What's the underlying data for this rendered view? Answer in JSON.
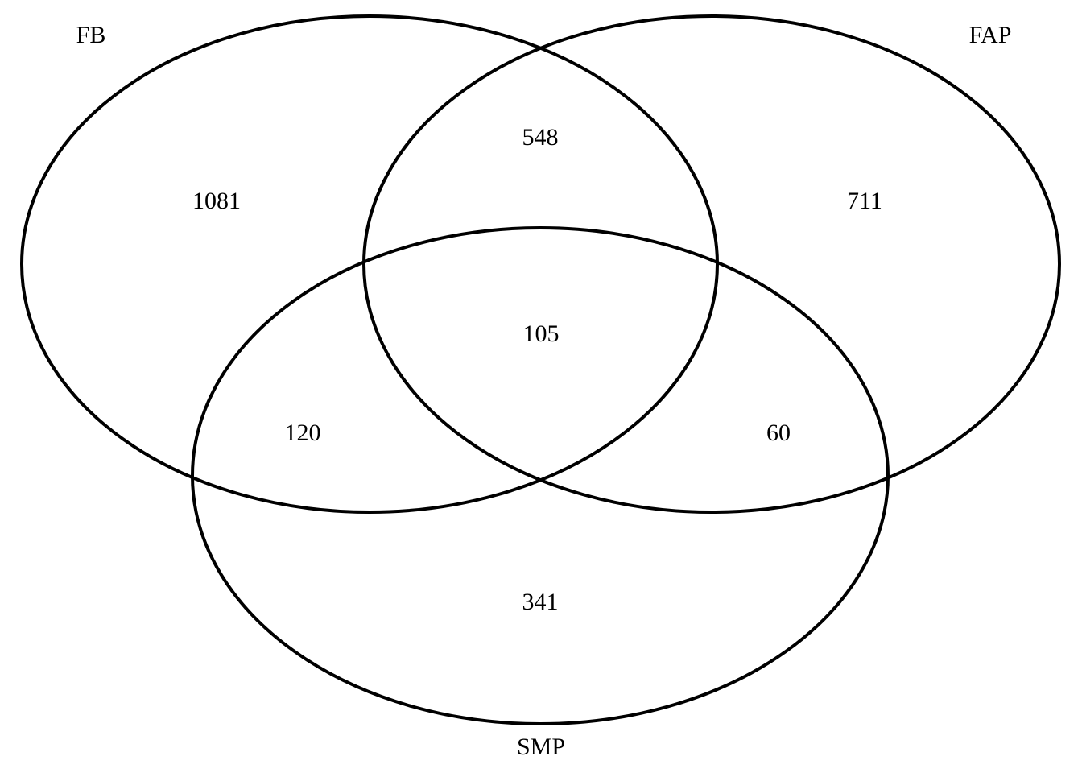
{
  "sets": {
    "left": {
      "label": "FB"
    },
    "right": {
      "label": "FAP"
    },
    "bottom": {
      "label": "SMP"
    }
  },
  "regions": {
    "left_only": "1081",
    "right_only": "711",
    "bottom_only": "341",
    "left_right": "548",
    "left_bottom": "120",
    "right_bottom": "60",
    "all_three": "105"
  },
  "colors": {
    "stroke": "#000000",
    "background": "#ffffff"
  }
}
